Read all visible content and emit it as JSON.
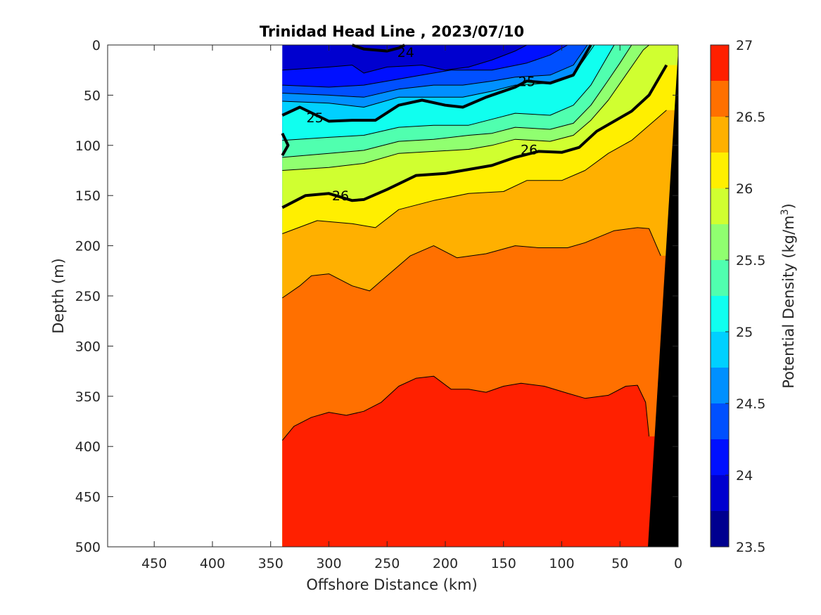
{
  "chart_data": {
    "type": "heatmap",
    "subtype": "filled-contour-section",
    "title": "Trinidad Head Line , 2023/07/10",
    "xlabel": "Offshore Distance (km)",
    "ylabel": "Depth (m)",
    "xlim": [
      490,
      0
    ],
    "ylim": [
      0,
      500
    ],
    "x_direction": "reversed",
    "y_direction": "reversed (depth increasing downward)",
    "x_ticks": [
      450,
      400,
      350,
      300,
      250,
      200,
      150,
      100,
      50,
      0
    ],
    "y_ticks": [
      0,
      50,
      100,
      150,
      200,
      250,
      300,
      350,
      400,
      450,
      500
    ],
    "data_extent_km": [
      340,
      0
    ],
    "colorbar": {
      "label": "Potential Density (kg/m",
      "label_superscript": "3",
      "label_suffix": ")",
      "range": [
        23.5,
        27
      ],
      "ticks": [
        27,
        26.5,
        26,
        25.5,
        25,
        24.5,
        24,
        23.5
      ],
      "levels": [
        23.5,
        23.75,
        24,
        24.25,
        24.5,
        24.75,
        25,
        25.25,
        25.5,
        25.75,
        26,
        26.25,
        26.5,
        26.75,
        27
      ],
      "colors": [
        "#00008f",
        "#0000cf",
        "#0010ff",
        "#0050ff",
        "#0090ff",
        "#00d0ff",
        "#10ffef",
        "#50ffaf",
        "#90ff70",
        "#d0ff30",
        "#ffef00",
        "#ffb000",
        "#ff7000",
        "#ff2000",
        "#c00000"
      ]
    },
    "contour_labels": [
      {
        "text": "24",
        "x_km": 234,
        "depth_m": 7
      },
      {
        "text": "25",
        "x_km": 130,
        "depth_m": 36
      },
      {
        "text": "25",
        "x_km": 312,
        "depth_m": 72
      },
      {
        "text": "26",
        "x_km": 128,
        "depth_m": 104
      },
      {
        "text": "26",
        "x_km": 290,
        "depth_m": 150
      }
    ],
    "isopycnals": [
      {
        "level": 24.0,
        "bold": true,
        "points": [
          [
            280,
            0
          ],
          [
            270,
            4
          ],
          [
            250,
            6
          ],
          [
            240,
            3
          ],
          [
            235,
            0
          ]
        ]
      },
      {
        "level": 24.0,
        "bold": false,
        "points": [
          [
            340,
            25
          ],
          [
            300,
            22
          ],
          [
            280,
            20
          ],
          [
            270,
            28
          ],
          [
            250,
            22
          ],
          [
            220,
            20
          ],
          [
            200,
            25
          ],
          [
            180,
            22
          ],
          [
            160,
            15
          ],
          [
            140,
            6
          ],
          [
            130,
            0
          ]
        ]
      },
      {
        "level": 24.25,
        "bold": false,
        "points": [
          [
            340,
            40
          ],
          [
            300,
            42
          ],
          [
            270,
            40
          ],
          [
            250,
            36
          ],
          [
            220,
            30
          ],
          [
            195,
            25
          ],
          [
            160,
            25
          ],
          [
            130,
            18
          ],
          [
            110,
            10
          ],
          [
            95,
            0
          ]
        ]
      },
      {
        "level": 24.5,
        "bold": false,
        "points": [
          [
            340,
            48
          ],
          [
            300,
            50
          ],
          [
            270,
            52
          ],
          [
            240,
            44
          ],
          [
            210,
            40
          ],
          [
            185,
            40
          ],
          [
            160,
            36
          ],
          [
            140,
            32
          ],
          [
            110,
            30
          ],
          [
            90,
            20
          ],
          [
            78,
            0
          ]
        ]
      },
      {
        "level": 24.75,
        "bold": false,
        "points": [
          [
            340,
            56
          ],
          [
            300,
            58
          ],
          [
            270,
            62
          ],
          [
            240,
            52
          ],
          [
            210,
            52
          ],
          [
            185,
            52
          ],
          [
            160,
            46
          ],
          [
            140,
            40
          ],
          [
            110,
            38
          ],
          [
            90,
            30
          ],
          [
            72,
            0
          ]
        ]
      },
      {
        "level": 25.0,
        "bold": true,
        "points": [
          [
            340,
            70
          ],
          [
            325,
            62
          ],
          [
            300,
            76
          ],
          [
            280,
            75
          ],
          [
            260,
            75
          ],
          [
            240,
            60
          ],
          [
            220,
            55
          ],
          [
            200,
            60
          ],
          [
            185,
            62
          ],
          [
            165,
            52
          ],
          [
            140,
            42
          ],
          [
            130,
            36
          ],
          [
            110,
            38
          ],
          [
            90,
            30
          ],
          [
            75,
            0
          ]
        ]
      },
      {
        "level": 25.0,
        "bold": true,
        "points": [
          [
            340,
            88
          ],
          [
            335,
            100
          ],
          [
            340,
            110
          ]
        ]
      },
      {
        "level": 25.25,
        "bold": false,
        "points": [
          [
            340,
            95
          ],
          [
            300,
            92
          ],
          [
            270,
            90
          ],
          [
            240,
            82
          ],
          [
            210,
            80
          ],
          [
            180,
            80
          ],
          [
            160,
            74
          ],
          [
            140,
            68
          ],
          [
            110,
            70
          ],
          [
            90,
            60
          ],
          [
            75,
            40
          ],
          [
            65,
            20
          ],
          [
            55,
            0
          ]
        ]
      },
      {
        "level": 25.5,
        "bold": false,
        "points": [
          [
            340,
            112
          ],
          [
            300,
            108
          ],
          [
            270,
            105
          ],
          [
            240,
            96
          ],
          [
            210,
            94
          ],
          [
            180,
            90
          ],
          [
            160,
            88
          ],
          [
            140,
            82
          ],
          [
            110,
            84
          ],
          [
            90,
            78
          ],
          [
            75,
            60
          ],
          [
            60,
            35
          ],
          [
            50,
            18
          ],
          [
            40,
            0
          ]
        ]
      },
      {
        "level": 25.75,
        "bold": false,
        "points": [
          [
            340,
            125
          ],
          [
            300,
            122
          ],
          [
            270,
            118
          ],
          [
            240,
            108
          ],
          [
            210,
            106
          ],
          [
            180,
            104
          ],
          [
            160,
            100
          ],
          [
            140,
            94
          ],
          [
            110,
            96
          ],
          [
            90,
            90
          ],
          [
            75,
            75
          ],
          [
            60,
            55
          ],
          [
            45,
            30
          ],
          [
            30,
            5
          ],
          [
            25,
            0
          ]
        ]
      },
      {
        "level": 26.0,
        "bold": true,
        "points": [
          [
            340,
            162
          ],
          [
            320,
            150
          ],
          [
            300,
            148
          ],
          [
            280,
            155
          ],
          [
            270,
            154
          ],
          [
            250,
            144
          ],
          [
            225,
            130
          ],
          [
            200,
            128
          ],
          [
            180,
            124
          ],
          [
            160,
            120
          ],
          [
            140,
            112
          ],
          [
            120,
            106
          ],
          [
            100,
            107
          ],
          [
            85,
            102
          ],
          [
            70,
            86
          ],
          [
            55,
            76
          ],
          [
            40,
            66
          ],
          [
            25,
            50
          ],
          [
            15,
            30
          ],
          [
            10,
            20
          ]
        ]
      },
      {
        "level": 26.25,
        "bold": false,
        "points": [
          [
            340,
            188
          ],
          [
            310,
            175
          ],
          [
            280,
            178
          ],
          [
            260,
            182
          ],
          [
            240,
            164
          ],
          [
            210,
            155
          ],
          [
            180,
            148
          ],
          [
            150,
            146
          ],
          [
            130,
            135
          ],
          [
            100,
            135
          ],
          [
            80,
            125
          ],
          [
            60,
            108
          ],
          [
            40,
            95
          ],
          [
            20,
            75
          ],
          [
            10,
            65
          ]
        ]
      },
      {
        "level": 26.5,
        "bold": false,
        "points": [
          [
            340,
            252
          ],
          [
            325,
            240
          ],
          [
            315,
            230
          ],
          [
            300,
            228
          ],
          [
            280,
            240
          ],
          [
            265,
            245
          ],
          [
            250,
            230
          ],
          [
            230,
            210
          ],
          [
            210,
            200
          ],
          [
            190,
            212
          ],
          [
            165,
            208
          ],
          [
            140,
            200
          ],
          [
            120,
            202
          ],
          [
            95,
            202
          ],
          [
            80,
            197
          ],
          [
            55,
            185
          ],
          [
            35,
            182
          ],
          [
            25,
            183
          ],
          [
            15,
            210
          ]
        ]
      },
      {
        "level": 26.75,
        "bold": false,
        "points": [
          [
            340,
            394
          ],
          [
            330,
            380
          ],
          [
            315,
            371
          ],
          [
            300,
            366
          ],
          [
            285,
            369
          ],
          [
            270,
            365
          ],
          [
            255,
            356
          ],
          [
            240,
            340
          ],
          [
            225,
            332
          ],
          [
            210,
            330
          ],
          [
            195,
            343
          ],
          [
            180,
            343
          ],
          [
            165,
            346
          ],
          [
            150,
            340
          ],
          [
            135,
            337
          ],
          [
            115,
            340
          ],
          [
            95,
            347
          ],
          [
            80,
            352
          ],
          [
            60,
            349
          ],
          [
            45,
            340
          ],
          [
            35,
            339
          ],
          [
            28,
            356
          ],
          [
            25,
            390
          ]
        ]
      }
    ],
    "bathymetry": {
      "color": "#000000",
      "points": [
        [
          0,
          5
        ],
        [
          26,
          500
        ],
        [
          0,
          500
        ]
      ]
    }
  }
}
